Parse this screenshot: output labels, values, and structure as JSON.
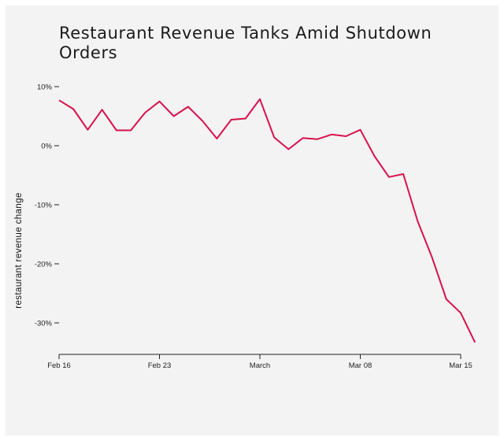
{
  "chart_data": {
    "type": "line",
    "title": "Restaurant Revenue Tanks Amid Shutdown Orders",
    "xlabel": "",
    "ylabel": "restaurant revenue change",
    "x_tick_labels": [
      "Feb 16",
      "Feb 23",
      "March",
      "Mar 08",
      "Mar 15"
    ],
    "y_tick_labels": [
      "10%",
      "0%",
      "-10%",
      "-20%",
      "-30%"
    ],
    "y_ticks": [
      10,
      0,
      -10,
      -20,
      -30
    ],
    "xlim": [
      "Feb 16",
      "Mar 15"
    ],
    "ylim": [
      -35,
      10
    ],
    "grid": false,
    "color": "#d6124c",
    "series": [
      {
        "x": [
          "Feb 16",
          "Feb 17",
          "Feb 18",
          "Feb 19",
          "Feb 20",
          "Feb 21",
          "Feb 22",
          "Feb 23",
          "Feb 24",
          "Feb 25",
          "Feb 26",
          "Feb 27",
          "Feb 28",
          "Feb 29",
          "Mar 01",
          "Mar 02",
          "Mar 03",
          "Mar 04",
          "Mar 05",
          "Mar 06",
          "Mar 07",
          "Mar 08",
          "Mar 09",
          "Mar 10",
          "Mar 11",
          "Mar 12",
          "Mar 13",
          "Mar 14",
          "Mar 15",
          "Mar 16"
        ],
        "values": [
          7.7,
          6.2,
          2.7,
          6.1,
          2.6,
          2.6,
          5.6,
          7.5,
          5.0,
          6.6,
          4.2,
          1.2,
          4.4,
          4.6,
          7.9,
          1.4,
          -0.6,
          1.3,
          1.1,
          1.9,
          1.6,
          2.7,
          -1.8,
          -5.3,
          -4.8,
          -12.8,
          -18.9,
          -26.0,
          -28.3,
          -33.3
        ]
      }
    ]
  }
}
